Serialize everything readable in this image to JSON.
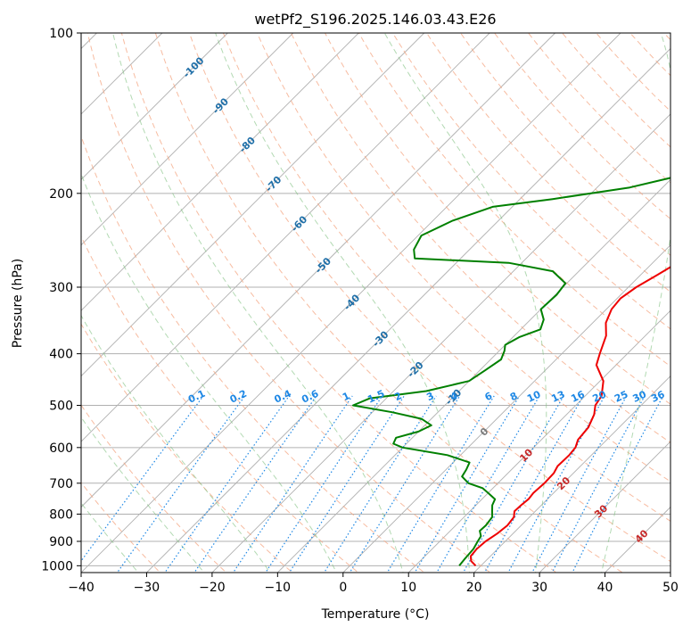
{
  "chart_data": {
    "type": "line",
    "subtype": "skew-T log-p",
    "title": "wetPf2_S196.2025.146.03.43.E26",
    "xlabel": "Temperature (°C)",
    "ylabel": "Pressure (hPa)",
    "xlim": [
      -40,
      50
    ],
    "ylim": [
      1030,
      100
    ],
    "x_ticks": [
      -40,
      -30,
      -20,
      -10,
      0,
      10,
      20,
      30,
      40,
      50
    ],
    "y_ticks": [
      1000,
      900,
      800,
      700,
      600,
      500,
      400,
      300,
      200,
      100
    ],
    "isotherm_labels": [
      {
        "value": -100,
        "text": "-100"
      },
      {
        "value": -90,
        "text": "-90"
      },
      {
        "value": -80,
        "text": "-80"
      },
      {
        "value": -70,
        "text": "-70"
      },
      {
        "value": -60,
        "text": "-60"
      },
      {
        "value": -50,
        "text": "-50"
      },
      {
        "value": -40,
        "text": "-40"
      },
      {
        "value": -30,
        "text": "-30"
      },
      {
        "value": -20,
        "text": "-20"
      },
      {
        "value": -10,
        "text": "-10"
      },
      {
        "value": 0,
        "text": "0"
      },
      {
        "value": 10,
        "text": "10"
      },
      {
        "value": 20,
        "text": "20"
      },
      {
        "value": 30,
        "text": "30"
      },
      {
        "value": 40,
        "text": "40"
      }
    ],
    "mixing_ratio_labels": [
      "0.1",
      "0.2",
      "0.4",
      "0.6",
      "1",
      "1.5",
      "2",
      "3",
      "4",
      "6",
      "8",
      "10",
      "13",
      "16",
      "20",
      "25",
      "30",
      "36"
    ],
    "series": [
      {
        "name": "Temperature",
        "color": "#ee0000",
        "points": [
          [
            1000,
            19.2
          ],
          [
            980,
            17.8
          ],
          [
            960,
            17.0
          ],
          [
            930,
            16.8
          ],
          [
            900,
            17.0
          ],
          [
            870,
            17.6
          ],
          [
            840,
            17.9
          ],
          [
            810,
            17.6
          ],
          [
            790,
            16.8
          ],
          [
            770,
            16.9
          ],
          [
            750,
            17.1
          ],
          [
            730,
            16.9
          ],
          [
            700,
            17.1
          ],
          [
            670,
            17.0
          ],
          [
            650,
            16.5
          ],
          [
            620,
            16.6
          ],
          [
            600,
            16.4
          ],
          [
            580,
            15.6
          ],
          [
            550,
            15.3
          ],
          [
            520,
            14.2
          ],
          [
            500,
            13.0
          ],
          [
            480,
            12.5
          ],
          [
            450,
            10.5
          ],
          [
            420,
            7.0
          ],
          [
            400,
            5.8
          ],
          [
            370,
            4.0
          ],
          [
            350,
            2.0
          ],
          [
            330,
            0.8
          ],
          [
            315,
            0.5
          ],
          [
            300,
            1.2
          ],
          [
            285,
            2.5
          ],
          [
            270,
            3.8
          ],
          [
            255,
            4.5
          ],
          [
            240,
            4.4
          ],
          [
            225,
            3.6
          ],
          [
            210,
            2.2
          ],
          [
            195,
            0.8
          ],
          [
            180,
            0.3
          ],
          [
            165,
            0.4
          ],
          [
            150,
            0.6
          ],
          [
            140,
            1.2
          ],
          [
            130,
            2.0
          ],
          [
            120,
            2.4
          ],
          [
            112,
            2.8
          ],
          [
            105,
            2.8
          ],
          [
            100,
            2.6
          ]
        ]
      },
      {
        "name": "Dewpoint",
        "color": "#008000",
        "points": [
          [
            1000,
            16.7
          ],
          [
            970,
            16.5
          ],
          [
            930,
            16.3
          ],
          [
            900,
            15.8
          ],
          [
            880,
            15.5
          ],
          [
            860,
            14.5
          ],
          [
            840,
            14.6
          ],
          [
            810,
            14.3
          ],
          [
            790,
            13.4
          ],
          [
            770,
            12.5
          ],
          [
            750,
            12.0
          ],
          [
            730,
            10.0
          ],
          [
            715,
            8.4
          ],
          [
            700,
            5.5
          ],
          [
            680,
            3.5
          ],
          [
            660,
            3.1
          ],
          [
            640,
            2.5
          ],
          [
            620,
            -2.0
          ],
          [
            600,
            -10.0
          ],
          [
            590,
            -12.0
          ],
          [
            575,
            -12.5
          ],
          [
            560,
            -10.0
          ],
          [
            545,
            -9.0
          ],
          [
            530,
            -11.5
          ],
          [
            515,
            -17.0
          ],
          [
            500,
            -24.0
          ],
          [
            485,
            -22.5
          ],
          [
            470,
            -15.0
          ],
          [
            450,
            -10.0
          ],
          [
            430,
            -9.2
          ],
          [
            410,
            -8.4
          ],
          [
            395,
            -9.2
          ],
          [
            385,
            -10.0
          ],
          [
            372,
            -9.0
          ],
          [
            360,
            -7.0
          ],
          [
            345,
            -8.0
          ],
          [
            330,
            -10.0
          ],
          [
            310,
            -9.8
          ],
          [
            295,
            -10.2
          ],
          [
            280,
            -14.0
          ],
          [
            270,
            -22.0
          ],
          [
            265,
            -37.0
          ],
          [
            255,
            -38.5
          ],
          [
            240,
            -39.5
          ],
          [
            225,
            -37.0
          ],
          [
            212,
            -33.0
          ],
          [
            205,
            -25.0
          ],
          [
            195,
            -15.0
          ],
          [
            185,
            -9.0
          ],
          [
            175,
            -7.5
          ],
          [
            160,
            -7.0
          ],
          [
            145,
            -6.0
          ],
          [
            135,
            -5.5
          ],
          [
            125,
            -4.6
          ],
          [
            118,
            -3.8
          ],
          [
            112,
            -3.7
          ],
          [
            106,
            -3.2
          ],
          [
            100,
            -2.5
          ]
        ]
      }
    ],
    "background_lines": [
      "isotherms",
      "dry adiabats",
      "moist adiabats",
      "mixing ratio lines",
      "isobars"
    ]
  },
  "colors": {
    "temperature": "#ee0000",
    "dewpoint": "#008000",
    "isotherm_label_cold": "#1f6fa8",
    "isotherm_label_zero": "#7a7a7a",
    "isotherm_label_warm": "#c62828",
    "mixing_ratio": "#1e88e5",
    "dry_adiabat": "#f4a582",
    "moist_adiabat": "#7fbf7f",
    "grid": "#b0b0b0"
  }
}
